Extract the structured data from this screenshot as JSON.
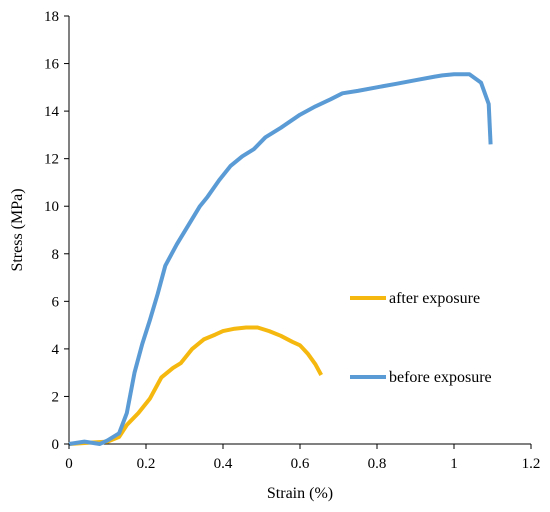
{
  "chart_data": {
    "type": "line",
    "title": "",
    "xlabel": "Strain (%)",
    "ylabel": "Stress (MPa)",
    "xlim": [
      0,
      1.2
    ],
    "ylim": [
      0,
      18
    ],
    "xticks": [
      0,
      0.2,
      0.4,
      0.6,
      0.8,
      1,
      1.2
    ],
    "xtick_labels": [
      "0",
      "0.2",
      "0.4",
      "0.6",
      "0.8",
      "1",
      "1.2"
    ],
    "yticks": [
      0,
      2,
      4,
      6,
      8,
      10,
      12,
      14,
      16,
      18
    ],
    "ytick_labels": [
      "0",
      "2",
      "4",
      "6",
      "8",
      "10",
      "12",
      "14",
      "16",
      "18"
    ],
    "grid": false,
    "legend_position": "right",
    "series": [
      {
        "name": "after exposure",
        "color": "#F5B80F",
        "x": [
          0.0,
          0.05,
          0.1,
          0.13,
          0.15,
          0.18,
          0.21,
          0.24,
          0.27,
          0.29,
          0.32,
          0.35,
          0.38,
          0.4,
          0.43,
          0.46,
          0.49,
          0.52,
          0.55,
          0.58,
          0.6,
          0.62,
          0.64,
          0.655
        ],
        "y": [
          0.0,
          0.05,
          0.1,
          0.3,
          0.8,
          1.3,
          1.9,
          2.8,
          3.2,
          3.4,
          4.0,
          4.4,
          4.6,
          4.75,
          4.85,
          4.9,
          4.9,
          4.75,
          4.55,
          4.3,
          4.15,
          3.8,
          3.35,
          2.9
        ]
      },
      {
        "name": "before exposure",
        "color": "#5B9BD5",
        "x": [
          0.0,
          0.04,
          0.08,
          0.1,
          0.13,
          0.15,
          0.17,
          0.19,
          0.21,
          0.23,
          0.25,
          0.28,
          0.31,
          0.34,
          0.36,
          0.39,
          0.42,
          0.45,
          0.48,
          0.51,
          0.55,
          0.6,
          0.64,
          0.68,
          0.71,
          0.75,
          0.8,
          0.85,
          0.9,
          0.95,
          0.97,
          1.0,
          1.02,
          1.04,
          1.07,
          1.09,
          1.095
        ],
        "y": [
          0.0,
          0.1,
          0.0,
          0.15,
          0.45,
          1.3,
          3.0,
          4.2,
          5.2,
          6.3,
          7.5,
          8.4,
          9.2,
          10.0,
          10.4,
          11.1,
          11.7,
          12.1,
          12.4,
          12.9,
          13.3,
          13.85,
          14.2,
          14.5,
          14.75,
          14.85,
          15.0,
          15.15,
          15.3,
          15.45,
          15.5,
          15.55,
          15.55,
          15.55,
          15.2,
          14.3,
          12.6
        ]
      }
    ]
  }
}
